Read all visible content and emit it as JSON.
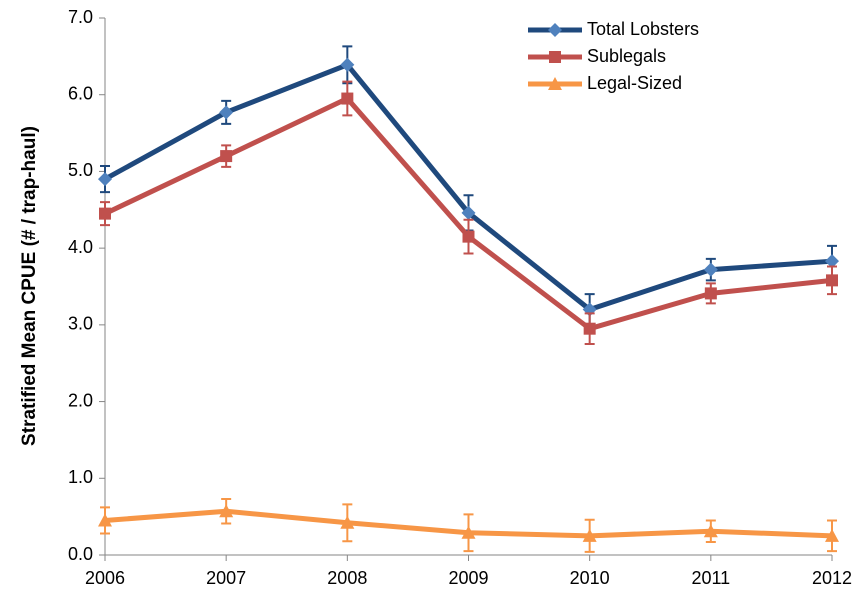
{
  "chart_data": {
    "type": "line",
    "y_label": "Stratified Mean CPUE (# / trap-haul)",
    "categories": [
      "2006",
      "2007",
      "2008",
      "2009",
      "2010",
      "2011",
      "2012"
    ],
    "series": [
      {
        "name": "Total Lobsters",
        "color": "#1f497d",
        "marker_color": "#4f81bd",
        "marker": "diamond",
        "values": [
          4.9,
          5.77,
          6.39,
          4.46,
          3.2,
          3.72,
          3.83
        ],
        "errors": [
          0.17,
          0.15,
          0.24,
          0.23,
          0.2,
          0.14,
          0.2
        ]
      },
      {
        "name": "Sublegals",
        "color": "#c0504d",
        "marker_color": "#c0504d",
        "marker": "square",
        "values": [
          4.45,
          5.2,
          5.95,
          4.15,
          2.95,
          3.41,
          3.58
        ],
        "errors": [
          0.15,
          0.14,
          0.22,
          0.22,
          0.2,
          0.13,
          0.18
        ]
      },
      {
        "name": "Legal-Sized",
        "color": "#f79646",
        "marker_color": "#f79646",
        "marker": "triangle",
        "values": [
          0.45,
          0.57,
          0.42,
          0.29,
          0.25,
          0.31,
          0.25
        ],
        "errors": [
          0.17,
          0.16,
          0.24,
          0.24,
          0.21,
          0.14,
          0.2
        ]
      }
    ],
    "ylim": [
      0,
      7
    ],
    "yticks": [
      {
        "value": 0,
        "label": "0.0"
      },
      {
        "value": 1,
        "label": "1.0"
      },
      {
        "value": 2,
        "label": "2.0"
      },
      {
        "value": 3,
        "label": "3.0"
      },
      {
        "value": 4,
        "label": "4.0"
      },
      {
        "value": 5,
        "label": "5.0"
      },
      {
        "value": 6,
        "label": "6.0"
      },
      {
        "value": 7,
        "label": "7.0"
      }
    ],
    "grid": false,
    "legend": "top-right"
  }
}
